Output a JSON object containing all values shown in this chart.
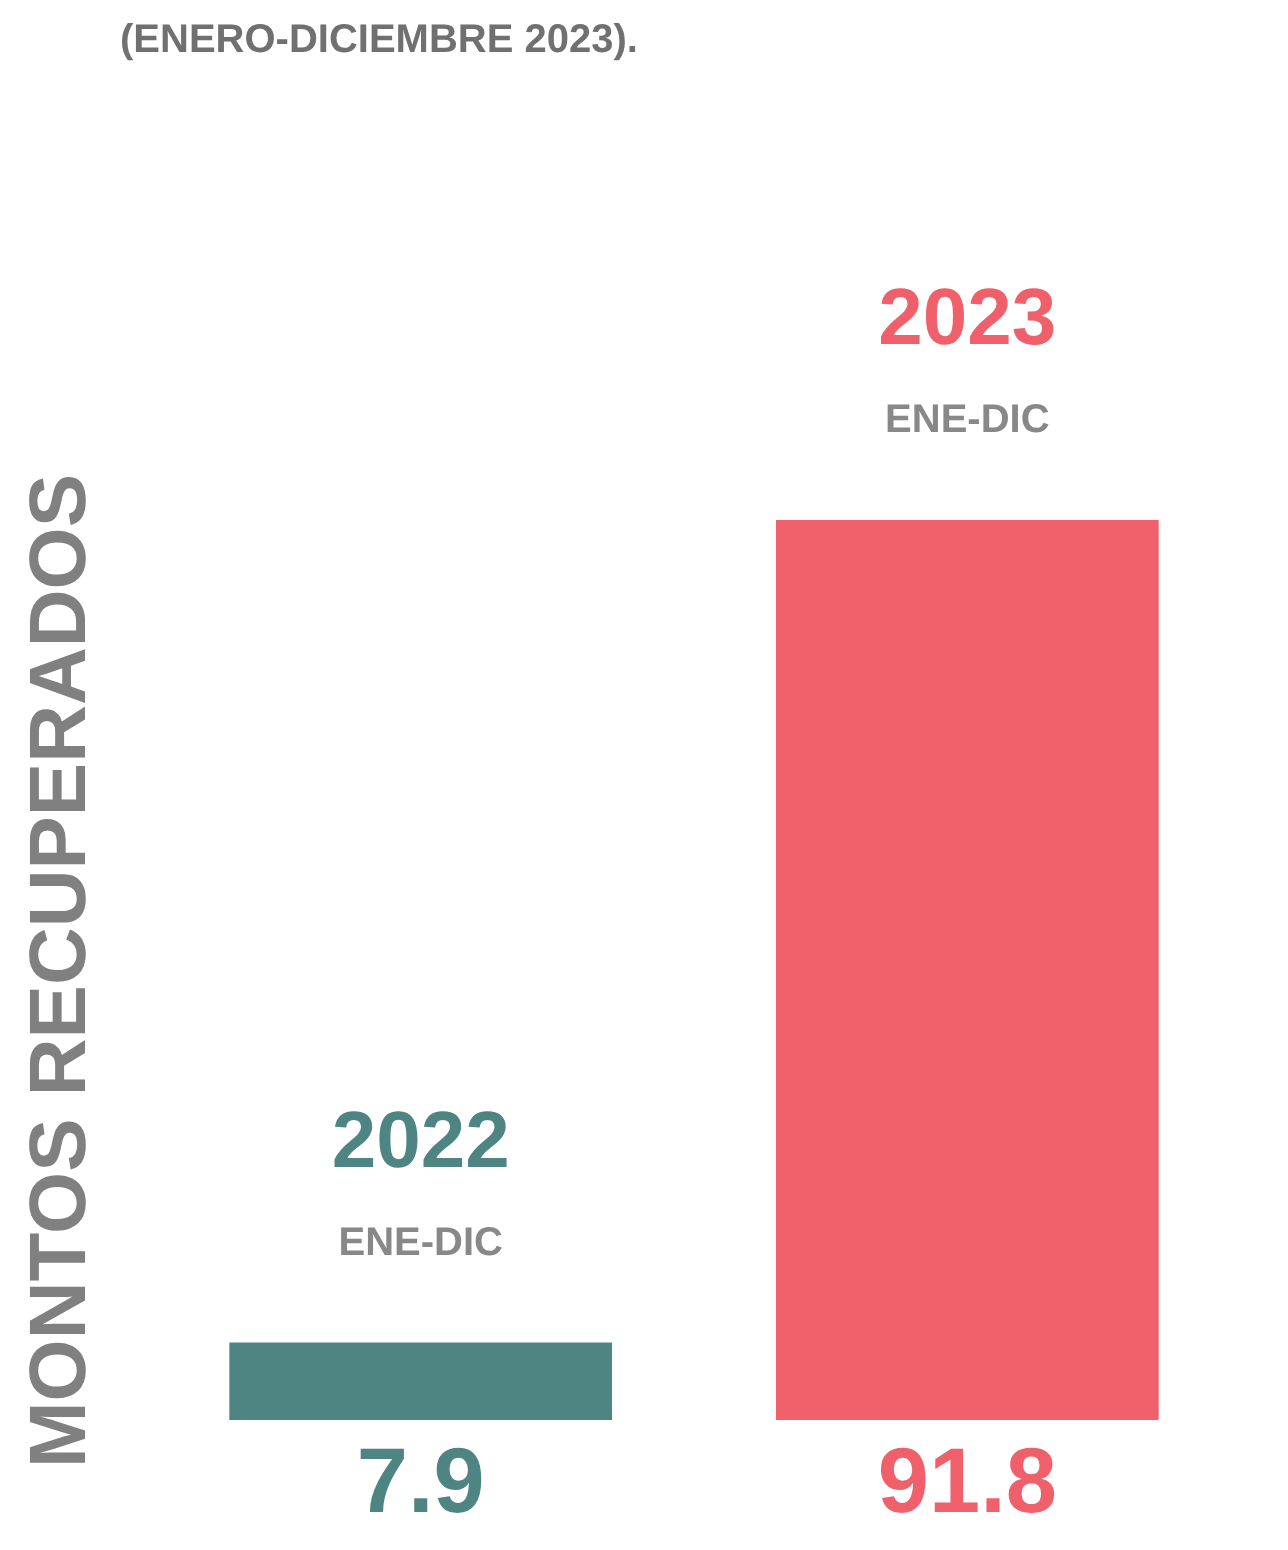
{
  "chart_data": {
    "type": "bar",
    "title": "(ENERO-DICIEMBRE 2023).",
    "ylabel": "MONTOS RECUPERADOS",
    "categories": [
      "2022",
      "2023"
    ],
    "values": [
      7.9,
      91.8
    ],
    "colors": [
      "#4e8583",
      "#f0606b"
    ],
    "data_labels": true,
    "annotations": [
      {
        "text": "ENE-DIC",
        "x": "2022",
        "y": 7.9
      },
      {
        "text": "ENE-DIC",
        "x": "2023",
        "y": 91.8
      }
    ]
  }
}
